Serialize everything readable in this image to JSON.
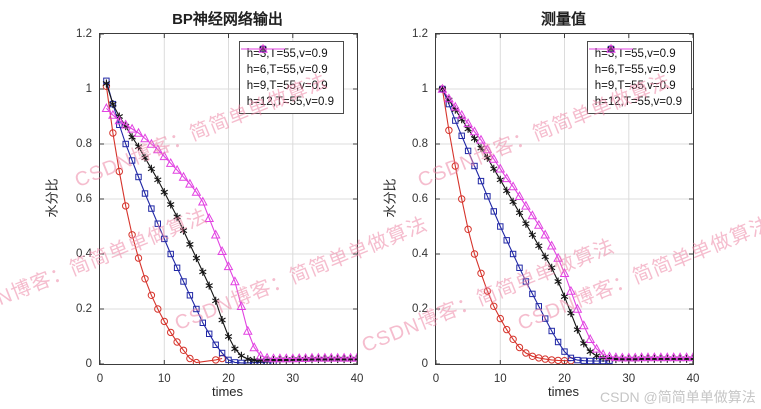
{
  "figure": {
    "watermark_diagonal": "CSDN博客：简简单单做算法",
    "watermark_corner": "CSDN @简简单单做算法"
  },
  "colors": {
    "red": "#d6342c",
    "blue": "#2027a5",
    "black": "#151515",
    "magenta": "#e243e2",
    "grid": "#dcdcdc",
    "axis": "#3c3c3c",
    "diagonal_watermark": "#ec86a5",
    "corner_watermark": "#c6c6c6"
  },
  "chart_data": [
    {
      "type": "line",
      "title": "BP神经网络输出",
      "xlabel": "times",
      "ylabel": "水分比",
      "xlim": [
        0,
        40
      ],
      "ylim": [
        0,
        1.2
      ],
      "xticks": [
        0,
        10,
        20,
        30,
        40
      ],
      "yticks": [
        0,
        0.2,
        0.4,
        0.6,
        0.8,
        1,
        1.2
      ],
      "grid": true,
      "legend_position": "northeast",
      "series": [
        {
          "name": "h=3,T=55,v=0.9",
          "color": "#d6342c",
          "marker": "circle",
          "points": [
            [
              1,
              1.01
            ],
            [
              2,
              0.84
            ],
            [
              3,
              0.7
            ],
            [
              4,
              0.575
            ],
            [
              5,
              0.47
            ],
            [
              6,
              0.385
            ],
            [
              7,
              0.31
            ],
            [
              8,
              0.25
            ],
            [
              9,
              0.2
            ],
            [
              10,
              0.155
            ],
            [
              11,
              0.115
            ],
            [
              12,
              0.08
            ],
            [
              13,
              0.05
            ],
            [
              14,
              0.02
            ],
            [
              15,
              0.005
            ],
            [
              18,
              0.015
            ],
            [
              19,
              0.02
            ]
          ]
        },
        {
          "name": "h=6,T=55,v=0.9",
          "color": "#2027a5",
          "marker": "square",
          "points": [
            [
              1,
              1.03
            ],
            [
              2,
              0.945
            ],
            [
              3,
              0.87
            ],
            [
              4,
              0.8
            ],
            [
              5,
              0.74
            ],
            [
              6,
              0.68
            ],
            [
              7,
              0.62
            ],
            [
              8,
              0.565
            ],
            [
              9,
              0.51
            ],
            [
              10,
              0.455
            ],
            [
              11,
              0.4
            ],
            [
              12,
              0.35
            ],
            [
              13,
              0.3
            ],
            [
              14,
              0.25
            ],
            [
              15,
              0.2
            ],
            [
              16,
              0.15
            ],
            [
              17,
              0.11
            ],
            [
              18,
              0.07
            ],
            [
              19,
              0.04
            ],
            [
              20,
              0.015
            ],
            [
              21,
              0.006
            ],
            [
              22,
              0.004
            ],
            [
              23,
              0.004
            ],
            [
              24,
              0.005
            ],
            [
              25,
              0.006
            ],
            [
              26,
              0.007
            ],
            [
              27,
              0.008
            ]
          ]
        },
        {
          "name": "h=9,T=55,v=0.9",
          "color": "#151515",
          "marker": "asterisk",
          "points": [
            [
              1,
              1.02
            ],
            [
              2,
              0.945
            ],
            [
              3,
              0.9
            ],
            [
              4,
              0.865
            ],
            [
              5,
              0.825
            ],
            [
              6,
              0.79
            ],
            [
              7,
              0.75
            ],
            [
              8,
              0.71
            ],
            [
              9,
              0.67
            ],
            [
              10,
              0.625
            ],
            [
              11,
              0.58
            ],
            [
              12,
              0.535
            ],
            [
              13,
              0.485
            ],
            [
              14,
              0.435
            ],
            [
              15,
              0.385
            ],
            [
              16,
              0.335
            ],
            [
              17,
              0.285
            ],
            [
              18,
              0.23
            ],
            [
              19,
              0.16
            ],
            [
              20,
              0.1
            ],
            [
              21,
              0.055
            ],
            [
              22,
              0.03
            ],
            [
              23,
              0.018
            ],
            [
              24,
              0.014
            ],
            [
              25,
              0.013
            ],
            [
              26,
              0.013
            ],
            [
              27,
              0.014
            ],
            [
              28,
              0.015
            ],
            [
              29,
              0.015
            ],
            [
              30,
              0.016
            ],
            [
              31,
              0.016
            ],
            [
              32,
              0.017
            ],
            [
              33,
              0.017
            ],
            [
              34,
              0.018
            ],
            [
              35,
              0.018
            ],
            [
              36,
              0.018
            ],
            [
              37,
              0.018
            ],
            [
              38,
              0.018
            ],
            [
              39,
              0.018
            ],
            [
              40,
              0.018
            ]
          ]
        },
        {
          "name": "h=12,T=55,v=0.9",
          "color": "#e243e2",
          "marker": "triangle",
          "points": [
            [
              1,
              0.93
            ],
            [
              2,
              0.905
            ],
            [
              3,
              0.885
            ],
            [
              4,
              0.87
            ],
            [
              5,
              0.855
            ],
            [
              6,
              0.84
            ],
            [
              7,
              0.82
            ],
            [
              8,
              0.8
            ],
            [
              9,
              0.78
            ],
            [
              10,
              0.755
            ],
            [
              11,
              0.73
            ],
            [
              12,
              0.705
            ],
            [
              13,
              0.68
            ],
            [
              14,
              0.655
            ],
            [
              15,
              0.625
            ],
            [
              16,
              0.59
            ],
            [
              17,
              0.53
            ],
            [
              18,
              0.47
            ],
            [
              19,
              0.41
            ],
            [
              20,
              0.355
            ],
            [
              21,
              0.3
            ],
            [
              22,
              0.21
            ],
            [
              23,
              0.12
            ],
            [
              24,
              0.06
            ],
            [
              25,
              0.03
            ],
            [
              26,
              0.022
            ],
            [
              27,
              0.02
            ],
            [
              28,
              0.02
            ],
            [
              29,
              0.02
            ],
            [
              30,
              0.02
            ],
            [
              31,
              0.021
            ],
            [
              32,
              0.021
            ],
            [
              33,
              0.022
            ],
            [
              34,
              0.022
            ],
            [
              35,
              0.022
            ],
            [
              36,
              0.022
            ],
            [
              37,
              0.022
            ],
            [
              38,
              0.022
            ],
            [
              39,
              0.022
            ],
            [
              40,
              0.022
            ]
          ]
        }
      ]
    },
    {
      "type": "line",
      "title": "测量值",
      "xlabel": "times",
      "ylabel": "水分比",
      "xlim": [
        0,
        40
      ],
      "ylim": [
        0,
        1.2
      ],
      "xticks": [
        0,
        10,
        20,
        30,
        40
      ],
      "yticks": [
        0,
        0.2,
        0.4,
        0.6,
        0.8,
        1,
        1.2
      ],
      "grid": true,
      "legend_position": "northeast",
      "series": [
        {
          "name": "h=3,T=55,v=0.9",
          "color": "#d6342c",
          "marker": "circle",
          "points": [
            [
              1,
              1.0
            ],
            [
              2,
              0.85
            ],
            [
              3,
              0.72
            ],
            [
              4,
              0.6
            ],
            [
              5,
              0.49
            ],
            [
              6,
              0.4
            ],
            [
              7,
              0.33
            ],
            [
              8,
              0.265
            ],
            [
              9,
              0.21
            ],
            [
              10,
              0.165
            ],
            [
              11,
              0.125
            ],
            [
              12,
              0.09
            ],
            [
              13,
              0.06
            ],
            [
              14,
              0.04
            ],
            [
              15,
              0.028
            ],
            [
              16,
              0.022
            ],
            [
              17,
              0.018
            ],
            [
              18,
              0.015
            ],
            [
              19,
              0.013
            ],
            [
              20,
              0.012
            ],
            [
              21,
              0.012
            ]
          ]
        },
        {
          "name": "h=6,T=55,v=0.9",
          "color": "#2027a5",
          "marker": "square",
          "points": [
            [
              1,
              1.0
            ],
            [
              2,
              0.945
            ],
            [
              3,
              0.885
            ],
            [
              4,
              0.83
            ],
            [
              5,
              0.775
            ],
            [
              6,
              0.72
            ],
            [
              7,
              0.665
            ],
            [
              8,
              0.61
            ],
            [
              9,
              0.555
            ],
            [
              10,
              0.5
            ],
            [
              11,
              0.45
            ],
            [
              12,
              0.4
            ],
            [
              13,
              0.35
            ],
            [
              14,
              0.3
            ],
            [
              15,
              0.255
            ],
            [
              16,
              0.21
            ],
            [
              17,
              0.165
            ],
            [
              18,
              0.12
            ],
            [
              19,
              0.08
            ],
            [
              20,
              0.045
            ],
            [
              21,
              0.022
            ],
            [
              22,
              0.014
            ],
            [
              23,
              0.012
            ],
            [
              24,
              0.011
            ],
            [
              25,
              0.011
            ],
            [
              26,
              0.011
            ],
            [
              27,
              0.012
            ]
          ]
        },
        {
          "name": "h=9,T=55,v=0.9",
          "color": "#151515",
          "marker": "asterisk",
          "points": [
            [
              1,
              1.0
            ],
            [
              2,
              0.96
            ],
            [
              3,
              0.925
            ],
            [
              4,
              0.89
            ],
            [
              5,
              0.855
            ],
            [
              6,
              0.82
            ],
            [
              7,
              0.785
            ],
            [
              8,
              0.75
            ],
            [
              9,
              0.71
            ],
            [
              10,
              0.67
            ],
            [
              11,
              0.63
            ],
            [
              12,
              0.59
            ],
            [
              13,
              0.55
            ],
            [
              14,
              0.51
            ],
            [
              15,
              0.47
            ],
            [
              16,
              0.43
            ],
            [
              17,
              0.39
            ],
            [
              18,
              0.35
            ],
            [
              19,
              0.3
            ],
            [
              20,
              0.245
            ],
            [
              21,
              0.185
            ],
            [
              22,
              0.125
            ],
            [
              23,
              0.075
            ],
            [
              24,
              0.045
            ],
            [
              25,
              0.03
            ],
            [
              26,
              0.022
            ],
            [
              27,
              0.019
            ],
            [
              28,
              0.018
            ],
            [
              29,
              0.018
            ],
            [
              30,
              0.018
            ],
            [
              31,
              0.018
            ],
            [
              32,
              0.019
            ],
            [
              33,
              0.019
            ],
            [
              34,
              0.019
            ],
            [
              35,
              0.019
            ],
            [
              36,
              0.019
            ],
            [
              37,
              0.019
            ],
            [
              38,
              0.019
            ],
            [
              39,
              0.019
            ],
            [
              40,
              0.019
            ]
          ]
        },
        {
          "name": "h=12,T=55,v=0.9",
          "color": "#e243e2",
          "marker": "triangle",
          "points": [
            [
              1,
              1.0
            ],
            [
              2,
              0.965
            ],
            [
              3,
              0.935
            ],
            [
              4,
              0.905
            ],
            [
              5,
              0.875
            ],
            [
              6,
              0.845
            ],
            [
              7,
              0.815
            ],
            [
              8,
              0.78
            ],
            [
              9,
              0.745
            ],
            [
              10,
              0.71
            ],
            [
              11,
              0.675
            ],
            [
              12,
              0.645
            ],
            [
              13,
              0.61
            ],
            [
              14,
              0.575
            ],
            [
              15,
              0.54
            ],
            [
              16,
              0.505
            ],
            [
              17,
              0.47
            ],
            [
              18,
              0.43
            ],
            [
              19,
              0.385
            ],
            [
              20,
              0.33
            ],
            [
              21,
              0.265
            ],
            [
              22,
              0.2
            ],
            [
              23,
              0.14
            ],
            [
              24,
              0.09
            ],
            [
              25,
              0.055
            ],
            [
              26,
              0.035
            ],
            [
              27,
              0.027
            ],
            [
              28,
              0.024
            ],
            [
              29,
              0.023
            ],
            [
              30,
              0.023
            ],
            [
              31,
              0.023
            ],
            [
              32,
              0.024
            ],
            [
              33,
              0.024
            ],
            [
              34,
              0.024
            ],
            [
              35,
              0.024
            ],
            [
              36,
              0.024
            ],
            [
              37,
              0.024
            ],
            [
              38,
              0.024
            ],
            [
              39,
              0.024
            ],
            [
              40,
              0.024
            ]
          ]
        }
      ]
    }
  ]
}
